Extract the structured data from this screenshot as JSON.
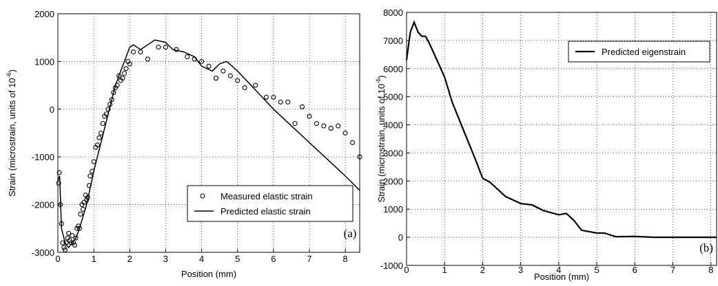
{
  "chart_data": [
    {
      "type": "line",
      "annotation": "(a)",
      "xlabel": "Position (mm)",
      "ylabel": {
        "text": "Strain (microstrain, units of 10",
        "sup": "-6",
        "end": ")"
      },
      "xlim": [
        0,
        8.4
      ],
      "ylim": [
        -3000,
        2000
      ],
      "xticks": [
        0,
        1,
        2,
        3,
        4,
        5,
        6,
        7,
        8
      ],
      "yticks": [
        -3000,
        -2000,
        -1000,
        0,
        1000,
        2000
      ],
      "grid": true,
      "legend": "lower right",
      "series": [
        {
          "name": "Measured elastic strain",
          "mode": "markers",
          "color": "#000000",
          "x": [
            0.02,
            0.04,
            0.07,
            0.1,
            0.13,
            0.17,
            0.2,
            0.23,
            0.27,
            0.3,
            0.33,
            0.37,
            0.4,
            0.43,
            0.47,
            0.5,
            0.53,
            0.57,
            0.6,
            0.63,
            0.67,
            0.7,
            0.73,
            0.77,
            0.8,
            0.83,
            0.87,
            0.9,
            0.95,
            1.0,
            1.05,
            1.1,
            1.15,
            1.2,
            1.25,
            1.3,
            1.35,
            1.4,
            1.45,
            1.5,
            1.55,
            1.6,
            1.65,
            1.7,
            1.75,
            1.8,
            1.85,
            1.9,
            1.95,
            2.0,
            2.1,
            2.3,
            2.5,
            2.8,
            3.0,
            3.3,
            3.6,
            3.8,
            4.0,
            4.2,
            4.4,
            4.6,
            4.8,
            5.0,
            5.2,
            5.5,
            5.8,
            6.0,
            6.2,
            6.4,
            6.6,
            6.8,
            7.0,
            7.2,
            7.4,
            7.6,
            7.8,
            8.0,
            8.2,
            8.4
          ],
          "values": [
            -1550,
            -1330,
            -2000,
            -2400,
            -2800,
            -2900,
            -2950,
            -2800,
            -2700,
            -2600,
            -2750,
            -2800,
            -2650,
            -2800,
            -2850,
            -2700,
            -2500,
            -2450,
            -2500,
            -2200,
            -2000,
            -2100,
            -1950,
            -1800,
            -1900,
            -1850,
            -1600,
            -1400,
            -1300,
            -1100,
            -800,
            -750,
            -600,
            -500,
            -300,
            -150,
            -100,
            0,
            100,
            200,
            350,
            450,
            500,
            700,
            600,
            650,
            750,
            850,
            1000,
            950,
            1200,
            1200,
            1050,
            1300,
            1300,
            1250,
            1100,
            1050,
            1000,
            900,
            650,
            800,
            700,
            600,
            450,
            500,
            250,
            250,
            150,
            150,
            -300,
            50,
            -150,
            -300,
            -350,
            -400,
            -350,
            -500,
            -700,
            -1000
          ]
        },
        {
          "name": "Predicted elastic strain",
          "mode": "lines",
          "color": "#000000",
          "x": [
            0,
            0.05,
            0.1,
            0.2,
            0.3,
            0.4,
            0.5,
            0.6,
            0.8,
            1.0,
            1.2,
            1.4,
            1.6,
            1.8,
            2.0,
            2.1,
            2.3,
            2.5,
            2.7,
            3.0,
            3.2,
            3.5,
            3.8,
            4.0,
            4.3,
            4.5,
            4.7,
            5.0,
            5.5,
            6.0,
            6.5,
            7.0,
            7.5,
            8.0,
            8.4
          ],
          "values": [
            -1500,
            -1400,
            -2500,
            -2800,
            -2900,
            -2800,
            -2700,
            -2500,
            -2000,
            -1300,
            -700,
            -100,
            500,
            900,
            1300,
            1350,
            1250,
            1350,
            1450,
            1400,
            1250,
            1200,
            1100,
            900,
            800,
            950,
            1000,
            800,
            400,
            0,
            -350,
            -700,
            -1050,
            -1400,
            -1700
          ]
        }
      ]
    },
    {
      "type": "line",
      "annotation": "(b)",
      "xlabel": "Position (mm)",
      "ylabel": {
        "text": "Strain (microstrain, units of 10",
        "sup": "-6",
        "end": ")"
      },
      "xlim": [
        0,
        8.15
      ],
      "ylim": [
        -1000,
        8000
      ],
      "xticks": [
        0,
        1,
        2,
        3,
        4,
        5,
        6,
        7,
        8
      ],
      "yticks": [
        -1000,
        0,
        1000,
        2000,
        3000,
        4000,
        5000,
        6000,
        7000,
        8000
      ],
      "grid": true,
      "legend": "upper right",
      "series": [
        {
          "name": "Predicted eigenstrain",
          "mode": "lines",
          "color": "#000000",
          "x": [
            0,
            0.1,
            0.2,
            0.3,
            0.4,
            0.5,
            0.6,
            0.8,
            1.0,
            1.2,
            1.5,
            1.8,
            2.0,
            2.2,
            2.4,
            2.6,
            3.0,
            3.3,
            3.6,
            4.0,
            4.2,
            4.4,
            4.6,
            5.0,
            5.2,
            5.5,
            6.0,
            6.5,
            7.0,
            8.15
          ],
          "values": [
            6300,
            7300,
            7650,
            7300,
            7150,
            7150,
            6900,
            6300,
            5700,
            4800,
            3800,
            2800,
            2100,
            1950,
            1700,
            1450,
            1200,
            1150,
            950,
            800,
            850,
            600,
            250,
            150,
            150,
            20,
            30,
            0,
            0,
            0
          ]
        }
      ]
    }
  ]
}
